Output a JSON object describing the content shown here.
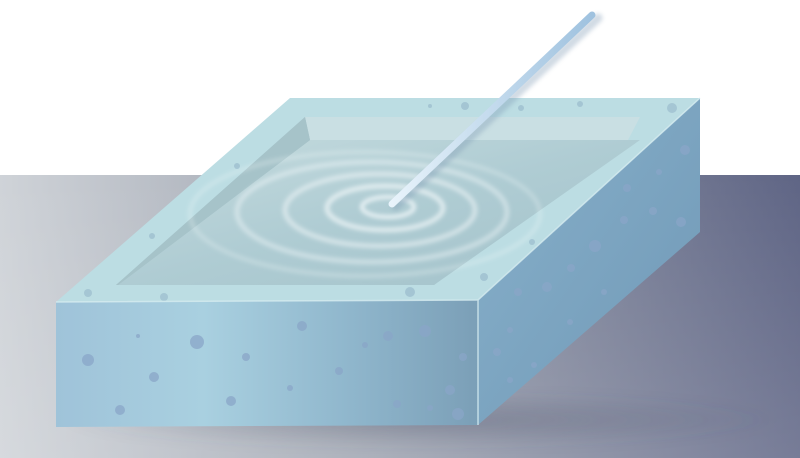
{
  "scene": {
    "subject": "rectangular-water-tank",
    "interaction": "rod-stirring-water",
    "colors": {
      "background_top": "#ffffff",
      "floor_left": "#cfd3d8",
      "floor_right": "#5f6585",
      "tank_top": "#bcdde3",
      "tank_front_light": "#9fc6d8",
      "tank_front_dark": "#7b9fb7",
      "tank_side": "#7ba5c1",
      "water": "#b3cfd6",
      "ripple": "#f2f8fa",
      "rod": "#b9d6ea",
      "speckle": "#8aa6c8"
    }
  }
}
